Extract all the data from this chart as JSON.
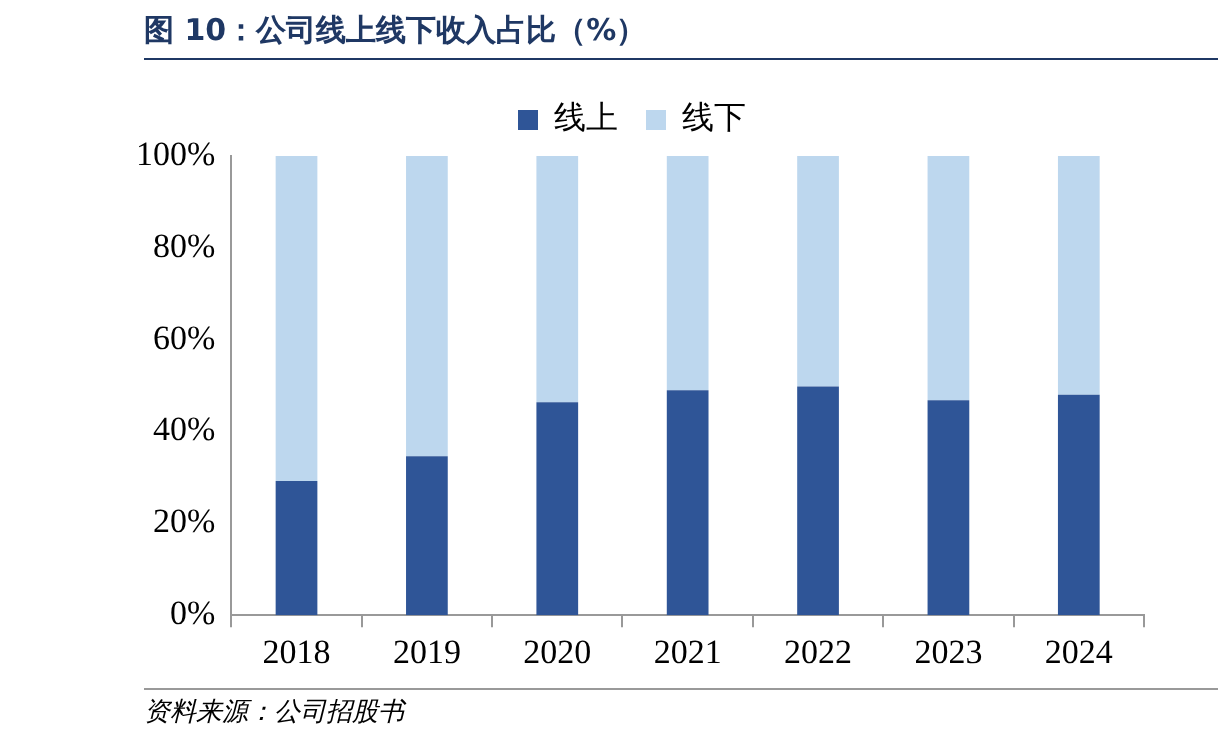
{
  "chart_data": {
    "type": "bar",
    "title": "图 10：公司线上线下收入占比（%）",
    "categories": [
      "2018",
      "2019",
      "2020",
      "2021",
      "2022",
      "2023",
      "2024"
    ],
    "stacked": true,
    "series": [
      {
        "name": "线上",
        "color": "#2f5597",
        "values": [
          29.2,
          34.6,
          46.4,
          49.0,
          49.8,
          46.8,
          48.0
        ]
      },
      {
        "name": "线下",
        "color": "#bdd7ee",
        "values": [
          70.8,
          65.4,
          53.6,
          51.0,
          50.2,
          53.2,
          52.0
        ]
      }
    ],
    "ylim": [
      0,
      100
    ],
    "yticks": [
      {
        "value": 0,
        "label": "0%"
      },
      {
        "value": 20,
        "label": "20%"
      },
      {
        "value": 40,
        "label": "40%"
      },
      {
        "value": 60,
        "label": "60%"
      },
      {
        "value": 80,
        "label": "80%"
      },
      {
        "value": 100,
        "label": "100%"
      }
    ],
    "grid": false,
    "legend": "top",
    "annotations": [
      "资料来源：公司招股书"
    ]
  }
}
